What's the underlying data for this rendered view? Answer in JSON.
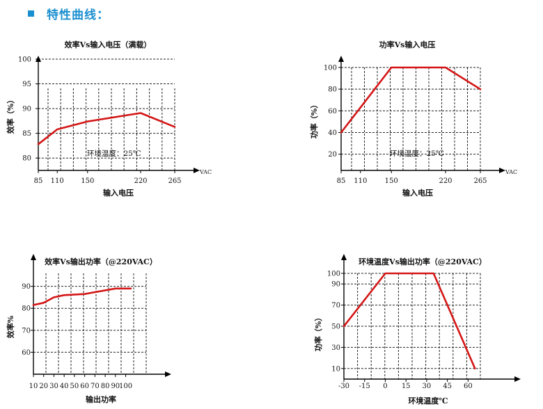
{
  "header": {
    "title": "特性曲线："
  },
  "chart_data": [
    {
      "type": "line",
      "title": "效率Vs输入电压（满载）",
      "xlabel": "输入电压",
      "ylabel": "效率（%）",
      "x_unit": "VAC",
      "annotation": "环境温度：25℃",
      "xticks": [
        85,
        110,
        150,
        220,
        265
      ],
      "yticks": [
        80,
        85,
        90,
        95,
        100
      ],
      "xlim": [
        85,
        265
      ],
      "ylim": [
        77.5,
        100
      ],
      "grid": true,
      "series": [
        {
          "x": [
            85,
            110,
            150,
            220,
            265
          ],
          "y": [
            82.8,
            85.8,
            87.4,
            89.1,
            86.3
          ]
        }
      ]
    },
    {
      "type": "line",
      "title": "功率Vs输入电压",
      "xlabel": "输入电压",
      "ylabel": "功率（%）",
      "x_unit": "VAC",
      "annotation": "环境温度：25℃",
      "xticks": [
        85,
        110,
        150,
        220,
        265
      ],
      "yticks": [
        20,
        40,
        60,
        80,
        100
      ],
      "xlim": [
        85,
        265
      ],
      "ylim": [
        5,
        100
      ],
      "grid": true,
      "series": [
        {
          "x": [
            85,
            150,
            220,
            265
          ],
          "y": [
            40,
            100,
            100,
            80
          ]
        }
      ]
    },
    {
      "type": "line",
      "title": "效率Vs输出功率（@220VAC）",
      "xlabel": "输出功率",
      "ylabel": "效率%",
      "xticks": [
        10,
        20,
        30,
        40,
        50,
        60,
        70,
        80,
        90,
        100
      ],
      "yticks": [
        60,
        70,
        80,
        90
      ],
      "xlim": [
        10,
        120
      ],
      "ylim": [
        50,
        94
      ],
      "grid": true,
      "series": [
        {
          "x": [
            10,
            20,
            30,
            40,
            60,
            90,
            105
          ],
          "y": [
            81.5,
            82.5,
            85,
            86,
            86.5,
            89,
            89
          ]
        }
      ]
    },
    {
      "type": "line",
      "title": "环境温度Vs输出功率（@220VAC）",
      "xlabel": "环境温度℃",
      "ylabel": "功率（%）",
      "xticks": [
        -30,
        -15,
        0,
        15,
        30,
        45,
        60
      ],
      "yticks": [
        10,
        30,
        50,
        70,
        90,
        100
      ],
      "xlim": [
        -30,
        80
      ],
      "ylim": [
        0,
        100
      ],
      "grid": true,
      "series": [
        {
          "x": [
            -30,
            0,
            35,
            65
          ],
          "y": [
            50,
            100,
            100,
            10
          ]
        }
      ]
    }
  ],
  "colors": {
    "series": "#d41515",
    "grid": "#222222",
    "axis": "#000000",
    "accent": "#1a8fd0"
  }
}
